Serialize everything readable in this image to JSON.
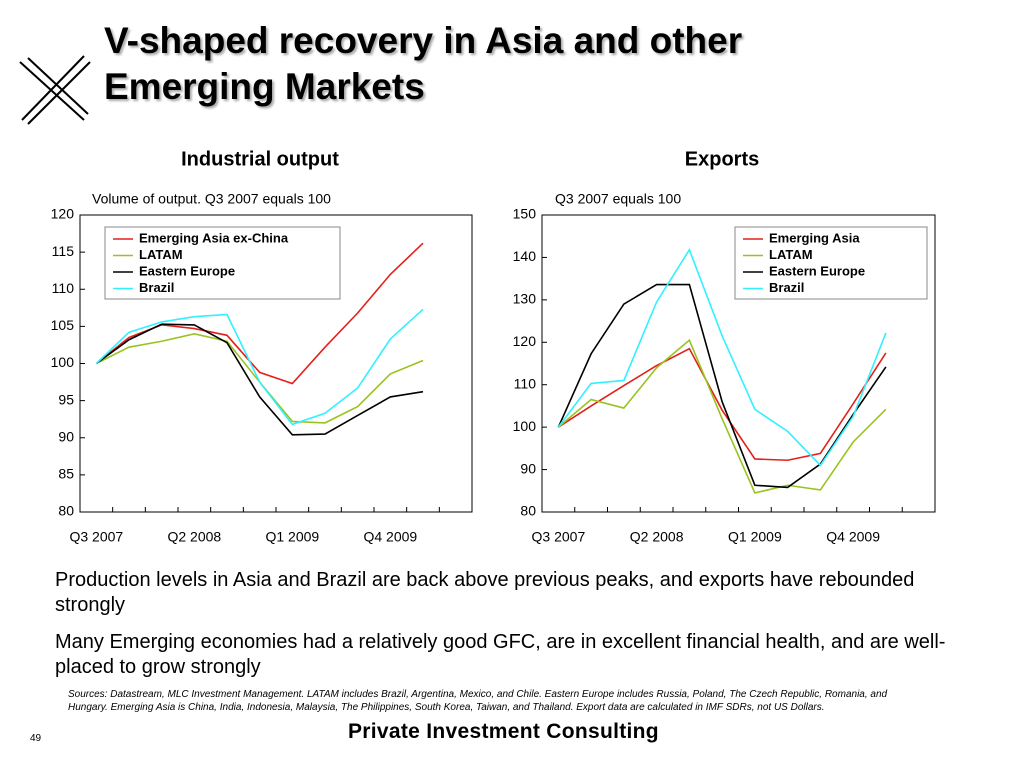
{
  "slide_title": "V-shaped recovery in Asia and other Emerging Markets",
  "chart_data": [
    {
      "type": "line",
      "title": "Industrial output",
      "subtitle": "Volume of output. Q3 2007 equals 100",
      "categories": [
        "Q3 2007",
        null,
        null,
        "Q2 2008",
        null,
        null,
        "Q1 2009",
        null,
        null,
        "Q4 2009",
        null,
        null
      ],
      "ylim": [
        80,
        120
      ],
      "yticks": [
        80,
        85,
        90,
        95,
        100,
        105,
        110,
        115,
        120
      ],
      "legend": "upper left",
      "series": [
        {
          "name": "Emerging Asia ex-China",
          "color": "#e3201b",
          "values": [
            100,
            103.5,
            105.2,
            104.7,
            103.8,
            98.8,
            97.3,
            102.2,
            106.8,
            112,
            116.2,
            null
          ]
        },
        {
          "name": "LATAM",
          "color": "#99c31f",
          "values": [
            100,
            102.2,
            103,
            104,
            103,
            97.5,
            92.2,
            92,
            94.2,
            98.6,
            100.4,
            null
          ]
        },
        {
          "name": "Eastern Europe",
          "color": "#000000",
          "values": [
            100,
            103.2,
            105.3,
            105.2,
            102.8,
            95.5,
            90.4,
            90.5,
            93,
            95.5,
            96.2,
            null
          ]
        },
        {
          "name": "Brazil",
          "color": "#33f0ff",
          "values": [
            100,
            104.2,
            105.6,
            106.3,
            106.6,
            97.5,
            91.8,
            93.3,
            96.7,
            103.3,
            107.3,
            null
          ]
        }
      ]
    },
    {
      "type": "line",
      "title": "Exports",
      "subtitle": "Q3 2007 equals 100",
      "categories": [
        "Q3 2007",
        null,
        null,
        "Q2 2008",
        null,
        null,
        "Q1 2009",
        null,
        null,
        "Q4 2009",
        null,
        null
      ],
      "ylim": [
        80,
        150
      ],
      "yticks": [
        80,
        90,
        100,
        110,
        120,
        130,
        140,
        150
      ],
      "legend": "upper right",
      "series": [
        {
          "name": "Emerging Asia",
          "color": "#e3201b",
          "values": [
            100,
            105,
            109.8,
            114.5,
            118.5,
            104,
            92.5,
            92.2,
            93.8,
            105.5,
            117.5,
            null
          ]
        },
        {
          "name": "LATAM",
          "color": "#99c31f",
          "values": [
            100,
            106.5,
            104.5,
            114,
            120.5,
            102,
            84.5,
            86.3,
            85.2,
            96.5,
            104.2,
            null
          ]
        },
        {
          "name": "Eastern Europe",
          "color": "#000000",
          "values": [
            100,
            117.3,
            129,
            133.6,
            133.6,
            106,
            86.3,
            85.8,
            91.3,
            103,
            114.2,
            null
          ]
        },
        {
          "name": "Brazil",
          "color": "#33f0ff",
          "values": [
            100,
            110.3,
            111,
            129.5,
            141.8,
            121.5,
            104.2,
            99,
            91,
            102.5,
            122.2,
            null
          ]
        }
      ]
    }
  ],
  "bullets": [
    "Production levels in Asia and Brazil are back above previous peaks, and exports have rebounded strongly",
    "Many Emerging economies had a relatively good GFC, are in excellent financial health, and are well-placed to grow strongly"
  ],
  "sources": "Sources: Datastream, MLC Investment Management. LATAM includes Brazil, Argentina, Mexico, and Chile. Eastern Europe includes Russia, Poland, The Czech Republic, Romania, and Hungary.  Emerging Asia is China, India, Indonesia, Malaysia, The Philippines, South Korea, Taiwan, and Thailand.  Export data are calculated in IMF SDRs, not US Dollars.",
  "page_number": "49",
  "footer": "Private Investment Consulting"
}
